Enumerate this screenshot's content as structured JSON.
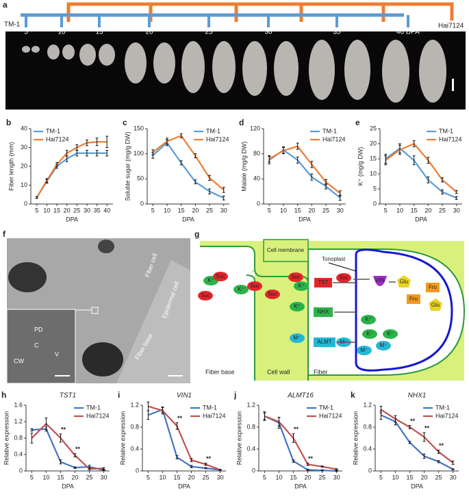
{
  "panel_a": {
    "panel": "a",
    "line1": "TM-1",
    "line2": "Hai7124",
    "stages": [
      "5",
      "10",
      "15",
      "20",
      "25",
      "30",
      "35",
      "40 DPA"
    ]
  },
  "panel_f": {
    "panel": "f",
    "labels": [
      "Fiber cell",
      "Epidermal cell",
      "Fiber base",
      "PD",
      "C",
      "CW",
      "V"
    ]
  },
  "panel_g": {
    "panel": "g",
    "cell_membrane": "Cell membrane",
    "tonoplast": "Tonoplast",
    "fiber_base": "Fiber base",
    "cell_wall": "Cell wall",
    "fiber": "Fiber",
    "k": "K⁺",
    "suc": "Suc",
    "tst": "TST",
    "vin": "VIN",
    "glu": "Glu",
    "fru": "Fru",
    "nhx": "NHX",
    "almt": "ALMT",
    "m": "M⁻"
  },
  "chart_data": [
    {
      "type": "line",
      "panel": "b",
      "ylabel": "Fiber length (mm)",
      "xlabel": "DPA",
      "x": [
        5,
        10,
        15,
        20,
        25,
        30,
        35,
        40
      ],
      "xlim": [
        2,
        43
      ],
      "xticks": [
        5,
        10,
        15,
        20,
        25,
        30,
        35,
        40
      ],
      "ylim": [
        0,
        40
      ],
      "yticks": [
        0,
        10,
        20,
        30,
        40
      ],
      "legend": "top-left",
      "series": [
        {
          "name": "TM-1",
          "color": "#5b9bd5",
          "values": [
            3.5,
            12,
            20,
            24,
            27,
            27,
            27,
            27
          ],
          "errors": [
            0.5,
            1,
            1,
            1.5,
            1.5,
            1.5,
            1.5,
            1.5
          ]
        },
        {
          "name": "Hai7124",
          "color": "#ed7d31",
          "values": [
            3.5,
            12.5,
            21,
            27,
            30,
            32.5,
            33,
            33
          ],
          "errors": [
            0.5,
            1,
            1,
            1.5,
            1.5,
            1.5,
            2,
            3
          ]
        }
      ]
    },
    {
      "type": "line",
      "panel": "c",
      "ylabel": "Soluble sugar (mg/g DW)",
      "xlabel": "DPA",
      "x": [
        5,
        10,
        15,
        20,
        25,
        30
      ],
      "xlim": [
        3,
        32
      ],
      "xticks": [
        5,
        10,
        15,
        20,
        25,
        30
      ],
      "ylim": [
        0,
        150
      ],
      "yticks": [
        0,
        50,
        100,
        150
      ],
      "legend": "top-right",
      "series": [
        {
          "name": "TM-1",
          "color": "#5b9bd5",
          "values": [
            97,
            122,
            82,
            44,
            25,
            12
          ],
          "errors": [
            6,
            6,
            4,
            4,
            5,
            4
          ]
        },
        {
          "name": "Hai7124",
          "color": "#ed7d31",
          "values": [
            103,
            125,
            136,
            96,
            52,
            28
          ],
          "errors": [
            5,
            6,
            4,
            4,
            5,
            5
          ]
        }
      ]
    },
    {
      "type": "line",
      "panel": "d",
      "ylabel": "Malate (mg/g DW)",
      "xlabel": "DPA",
      "x": [
        5,
        10,
        15,
        20,
        25,
        30
      ],
      "xlim": [
        3,
        32
      ],
      "xticks": [
        5,
        10,
        15,
        20,
        25,
        30
      ],
      "ylim": [
        0,
        120
      ],
      "yticks": [
        0,
        40,
        80,
        120
      ],
      "legend": "top-right",
      "series": [
        {
          "name": "TM-1",
          "color": "#5b9bd5",
          "values": [
            70,
            86,
            70,
            43,
            28,
            10
          ],
          "errors": [
            6,
            5,
            5,
            5,
            4,
            4
          ]
        },
        {
          "name": "Hai7124",
          "color": "#ed7d31",
          "values": [
            72,
            85,
            92,
            63,
            35,
            17
          ],
          "errors": [
            5,
            5,
            5,
            5,
            4,
            4
          ]
        }
      ]
    },
    {
      "type": "line",
      "panel": "e",
      "ylabel": "K⁺ (mg/g DW)",
      "xlabel": "DPA",
      "x": [
        5,
        10,
        15,
        20,
        25,
        30
      ],
      "xlim": [
        3,
        32
      ],
      "xticks": [
        5,
        10,
        15,
        20,
        25,
        30
      ],
      "ylim": [
        0,
        25
      ],
      "yticks": [
        0,
        5,
        10,
        15,
        20,
        25
      ],
      "legend": "top-right",
      "series": [
        {
          "name": "TM-1",
          "color": "#5b9bd5",
          "values": [
            15,
            18.5,
            14.5,
            8,
            4,
            2
          ],
          "errors": [
            1.5,
            1.5,
            1.5,
            1,
            0.7,
            0.5
          ]
        },
        {
          "name": "Hai7124",
          "color": "#ed7d31",
          "values": [
            14.5,
            18,
            20,
            14.5,
            8,
            4
          ],
          "errors": [
            1.5,
            1.5,
            1,
            1,
            0.7,
            0.5
          ]
        }
      ]
    },
    {
      "type": "line",
      "panel": "h",
      "title": "TST1",
      "ylabel": "Relative expression",
      "xlabel": "DPA",
      "x": [
        5,
        10,
        15,
        20,
        25,
        30
      ],
      "xlim": [
        3,
        32
      ],
      "xticks": [
        5,
        10,
        15,
        20,
        25,
        30
      ],
      "ylim": [
        0,
        1.6
      ],
      "yticks": [
        0,
        0.4,
        0.8,
        1.2,
        1.6
      ],
      "legend": "top-right",
      "significance": {
        "label": "**",
        "x": [
          15,
          20
        ]
      },
      "series": [
        {
          "name": "TM-1",
          "color": "#4472c4",
          "values": [
            1.0,
            1.02,
            0.22,
            0.08,
            0.1,
            0.02
          ],
          "errors": [
            0.03,
            0.05,
            0.05,
            0.02,
            0.04,
            0.01
          ]
        },
        {
          "name": "Hai7124",
          "color": "#c0504d",
          "values": [
            0.8,
            1.15,
            0.8,
            0.38,
            0.05,
            0.06
          ],
          "errors": [
            0.12,
            0.14,
            0.1,
            0.04,
            0.02,
            0.02
          ]
        }
      ]
    },
    {
      "type": "line",
      "panel": "i",
      "title": "VIN1",
      "ylabel": "Relative expression",
      "xlabel": "DPA",
      "x": [
        5,
        10,
        15,
        20,
        25,
        30
      ],
      "xlim": [
        3,
        32
      ],
      "xticks": [
        5,
        10,
        15,
        20,
        25,
        30
      ],
      "ylim": [
        0,
        1.2
      ],
      "yticks": [
        0,
        0.4,
        0.8,
        1.2
      ],
      "legend": "top-right",
      "significance": {
        "label": "**",
        "x": [
          15,
          25
        ]
      },
      "series": [
        {
          "name": "TM-1",
          "color": "#4472c4",
          "values": [
            1.02,
            1.12,
            0.25,
            0.08,
            0.05,
            0.02
          ],
          "errors": [
            0.08,
            0.05,
            0.03,
            0.02,
            0.01,
            0.01
          ]
        },
        {
          "name": "Hai7124",
          "color": "#c0504d",
          "values": [
            1.18,
            1.1,
            0.82,
            0.2,
            0.12,
            0.02
          ],
          "errors": [
            0.08,
            0.06,
            0.06,
            0.03,
            0.02,
            0.01
          ]
        }
      ]
    },
    {
      "type": "line",
      "panel": "j",
      "title": "ALMT16",
      "ylabel": "Relative expression",
      "xlabel": "DPA",
      "x": [
        5,
        10,
        15,
        20,
        25,
        30
      ],
      "xlim": [
        3,
        32
      ],
      "xticks": [
        5,
        10,
        15,
        20,
        25,
        30
      ],
      "ylim": [
        0,
        1.2
      ],
      "yticks": [
        0,
        0.4,
        0.8,
        1.2
      ],
      "legend": "top-right",
      "significance": {
        "label": "**",
        "x": [
          15,
          20
        ]
      },
      "series": [
        {
          "name": "TM-1",
          "color": "#4472c4",
          "values": [
            1.0,
            0.88,
            0.18,
            0.02,
            0.01,
            0.0
          ],
          "errors": [
            0.08,
            0.1,
            0.02,
            0.01,
            0.01,
            0.01
          ]
        },
        {
          "name": "Hai7124",
          "color": "#c0504d",
          "values": [
            1.0,
            0.9,
            0.6,
            0.12,
            0.08,
            0.03
          ],
          "errors": [
            0.06,
            0.08,
            0.08,
            0.02,
            0.01,
            0.01
          ]
        }
      ]
    },
    {
      "type": "line",
      "panel": "k",
      "title": "NHX1",
      "ylabel": "Relative expression",
      "xlabel": "DPA",
      "x": [
        5,
        10,
        15,
        20,
        25,
        30
      ],
      "xlim": [
        3,
        32
      ],
      "xticks": [
        5,
        10,
        15,
        20,
        25,
        30
      ],
      "ylim": [
        0,
        1.2
      ],
      "yticks": [
        0,
        0.4,
        0.8,
        1.2
      ],
      "legend": "top-right",
      "significance": {
        "label": "**",
        "x": [
          15,
          20,
          25
        ]
      },
      "series": [
        {
          "name": "TM-1",
          "color": "#4472c4",
          "values": [
            1.02,
            0.9,
            0.52,
            0.27,
            0.17,
            0.03
          ],
          "errors": [
            0.08,
            0.06,
            0.02,
            0.04,
            0.02,
            0.01
          ]
        },
        {
          "name": "Hai7124",
          "color": "#c0504d",
          "values": [
            1.12,
            0.95,
            0.8,
            0.62,
            0.35,
            0.15
          ],
          "errors": [
            0.06,
            0.06,
            0.03,
            0.08,
            0.03,
            0.03
          ]
        }
      ]
    }
  ]
}
